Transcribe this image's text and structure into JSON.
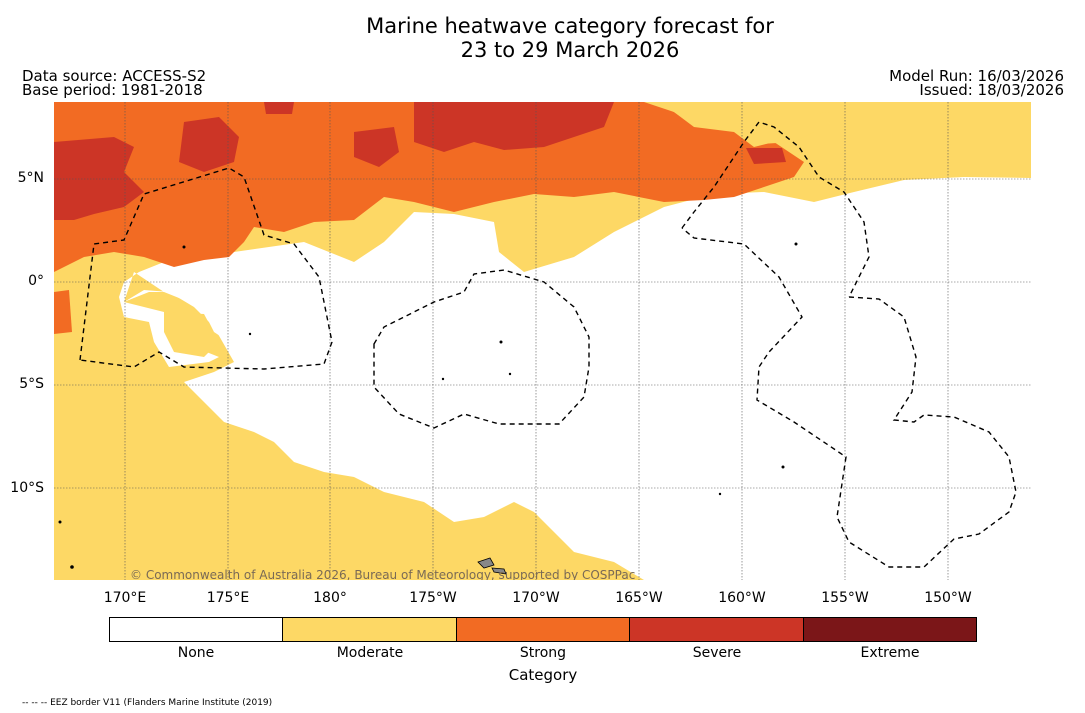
{
  "title": {
    "line1": "Marine heatwave category forecast for",
    "line2": "23 to 29 March 2026"
  },
  "meta": {
    "data_source": "Data source: ACCESS-S2",
    "base_period": "Base period: 1981-2018",
    "model_run": "Model Run: 16/03/2026",
    "issued": "Issued: 18/03/2026"
  },
  "map": {
    "copyright": "© Commonwealth of Australia 2026, Bureau of Meteorology, supported by COSPPac",
    "lat_ticks": [
      "5°N",
      "0°",
      "5°S",
      "10°S"
    ],
    "lon_ticks": [
      "170°E",
      "175°E",
      "180°",
      "175°W",
      "170°W",
      "165°W",
      "160°W",
      "155°W",
      "150°W"
    ]
  },
  "legend": {
    "title": "Category",
    "categories": [
      {
        "label": "None",
        "color": "#ffffff"
      },
      {
        "label": "Moderate",
        "color": "#fdd865"
      },
      {
        "label": "Strong",
        "color": "#f26b23"
      },
      {
        "label": "Severe",
        "color": "#cc3526"
      },
      {
        "label": "Extreme",
        "color": "#7b1618"
      }
    ]
  },
  "footnote": "-- -- -- EEZ border V11 (Flanders Marine Institute (2019)"
}
